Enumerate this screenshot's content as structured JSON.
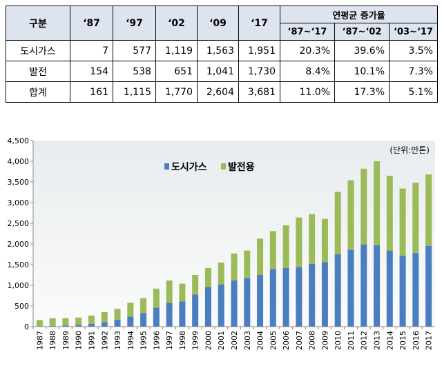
{
  "table": {
    "header_group": "구분",
    "header_cols": [
      "‘87",
      "‘97",
      "‘02",
      "‘09",
      "‘17"
    ],
    "header_growth": "연평균 증가율",
    "header_growth_cols": [
      "‘87~‘17",
      "‘87~‘02",
      "‘03~‘17"
    ],
    "rows": [
      {
        "label": "도시가스",
        "values": [
          "7",
          "577",
          "1,119",
          "1,563",
          "1,951"
        ],
        "growth": [
          "20.3%",
          "39.6%",
          "3.5%"
        ]
      },
      {
        "label": "발전",
        "values": [
          "154",
          "538",
          "651",
          "1,041",
          "1,730"
        ],
        "growth": [
          "8.4%",
          "10.1%",
          "7.3%"
        ]
      },
      {
        "label": "합계",
        "values": [
          "161",
          "1,115",
          "1,770",
          "2,604",
          "3,681"
        ],
        "growth": [
          "11.0%",
          "17.3%",
          "5.1%"
        ]
      }
    ]
  },
  "chart_data": {
    "type": "bar",
    "stacked": true,
    "unit_note": "(단위:만톤)",
    "categories": [
      "1987",
      "1988",
      "1989",
      "1990",
      "1991",
      "1992",
      "1993",
      "1994",
      "1995",
      "1996",
      "1997",
      "1998",
      "1999",
      "2000",
      "2001",
      "2002",
      "2003",
      "2004",
      "2005",
      "2006",
      "2007",
      "2008",
      "2009",
      "2010",
      "2011",
      "2012",
      "2013",
      "2014",
      "2015",
      "2016",
      "2017"
    ],
    "series": [
      {
        "name": "도시가스",
        "color": "#4a7ebf",
        "values": [
          7,
          20,
          30,
          45,
          70,
          110,
          170,
          240,
          330,
          460,
          577,
          610,
          780,
          960,
          1020,
          1119,
          1180,
          1250,
          1390,
          1420,
          1440,
          1520,
          1563,
          1750,
          1860,
          1990,
          1970,
          1840,
          1720,
          1780,
          1951
        ]
      },
      {
        "name": "발전용",
        "color": "#9bbb59",
        "values": [
          154,
          185,
          175,
          175,
          200,
          240,
          260,
          340,
          360,
          460,
          538,
          430,
          470,
          460,
          530,
          651,
          660,
          880,
          920,
          1030,
          1200,
          1200,
          1041,
          1510,
          1680,
          1830,
          2030,
          1810,
          1620,
          1700,
          1730
        ]
      }
    ],
    "ylim": [
      0,
      4500
    ],
    "yticks": [
      "0",
      "500",
      "1,000",
      "1,500",
      "2,000",
      "2,500",
      "3,000",
      "3,500",
      "4,000",
      "4,500"
    ],
    "legend_position": "top-left"
  }
}
